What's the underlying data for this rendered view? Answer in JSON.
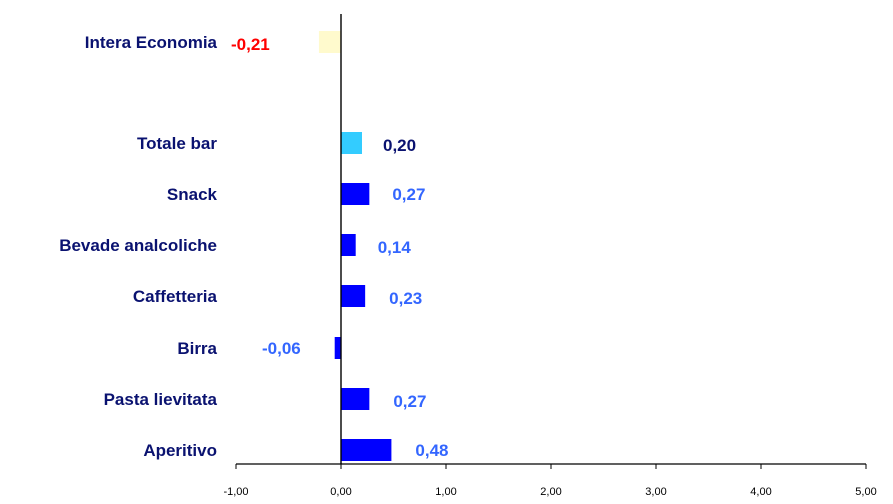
{
  "chart_data": {
    "type": "bar",
    "orientation": "horizontal",
    "categories": [
      "Intera Economia",
      "Totale bar",
      "Snack",
      "Bevade analcoliche",
      "Caffetteria",
      "Birra",
      "Pasta lievitata",
      "Aperitivo"
    ],
    "values": [
      -0.21,
      0.2,
      0.27,
      0.14,
      0.23,
      -0.06,
      0.27,
      0.48
    ],
    "value_labels": [
      "-0,21",
      "0,20",
      "0,27",
      "0,14",
      "0,23",
      "-0,06",
      "0,27",
      "0,48"
    ],
    "bar_colors": [
      "#FFFACD",
      "#33CCFF",
      "#0000FF",
      "#0000FF",
      "#0000FF",
      "#0000FF",
      "#0000FF",
      "#0000FF"
    ],
    "label_colors": [
      "#FF0000",
      "#0A1270",
      "#3366FF",
      "#3366FF",
      "#3366FF",
      "#3366FF",
      "#3366FF",
      "#3366FF"
    ],
    "xlim": [
      -1,
      5
    ],
    "xticks": [
      -1,
      0,
      1,
      2,
      3,
      4,
      5
    ],
    "xtick_labels": [
      "-1,00",
      "0,00",
      "1,00",
      "2,00",
      "3,00",
      "4,00",
      "5,00"
    ],
    "grid": false,
    "legend": "none"
  }
}
